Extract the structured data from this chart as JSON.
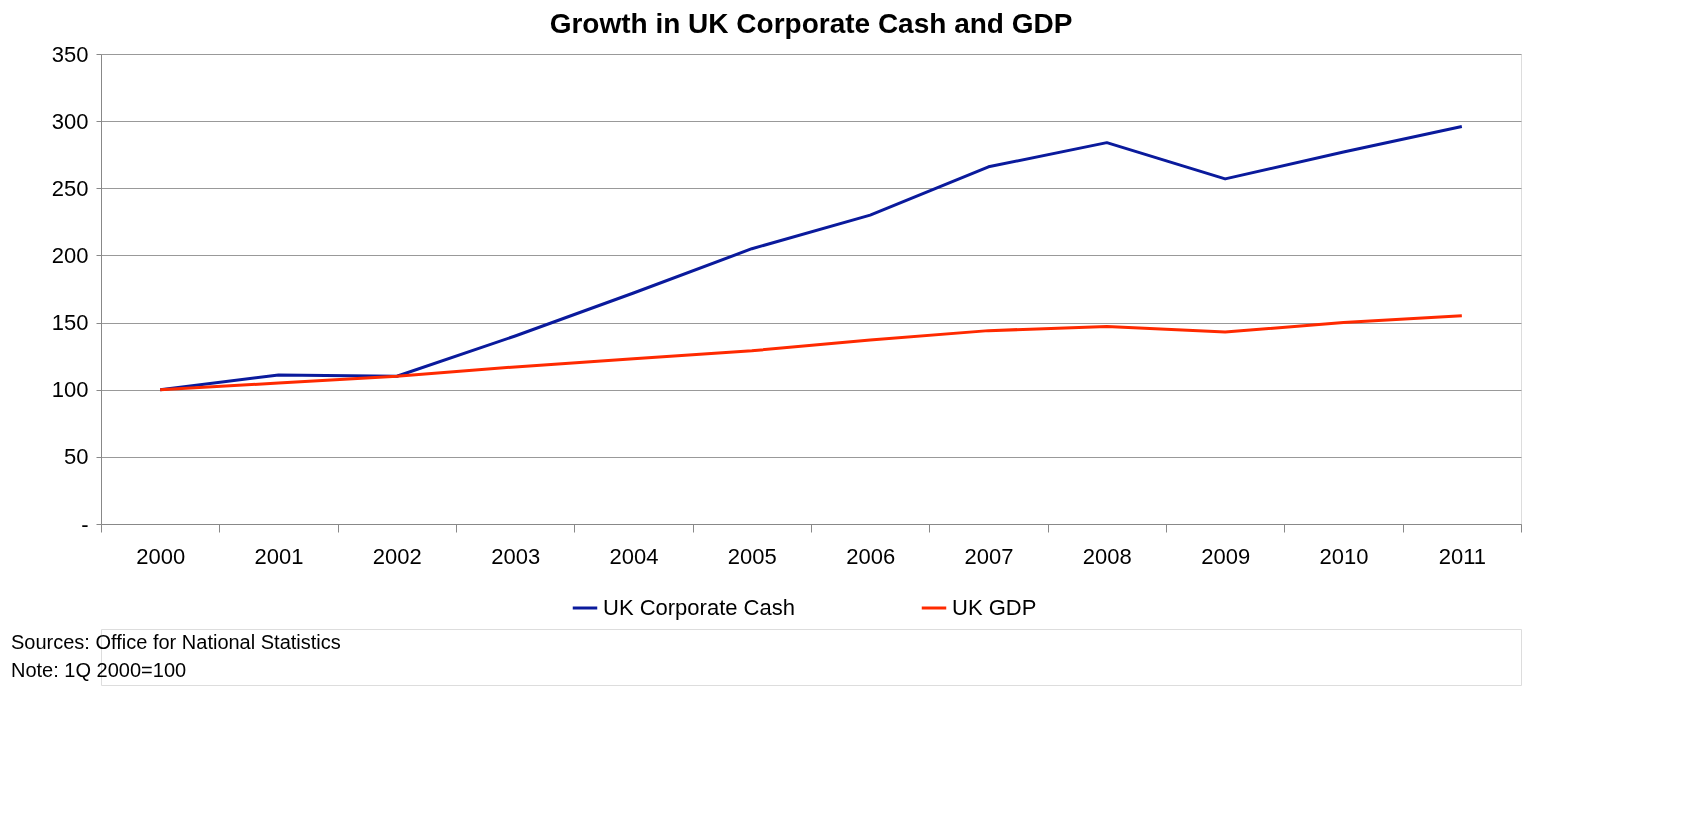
{
  "chart_data": {
    "type": "line",
    "title": "Growth in UK Corporate Cash and GDP",
    "categories": [
      "2000",
      "2001",
      "2002",
      "2003",
      "2004",
      "2005",
      "2006",
      "2007",
      "2008",
      "2009",
      "2010",
      "2011"
    ],
    "series": [
      {
        "name": "UK Corporate Cash",
        "color": "#0a1a9c",
        "values": [
          100,
          111,
          110,
          140,
          172,
          205,
          230,
          266,
          284,
          257,
          277,
          296
        ]
      },
      {
        "name": "UK GDP",
        "color": "#ff2a00",
        "values": [
          100,
          105,
          110,
          117,
          123,
          129,
          137,
          144,
          147,
          143,
          150,
          155
        ]
      }
    ],
    "ylim": [
      0,
      350
    ],
    "yticks": [
      {
        "value": 0,
        "label": "-"
      },
      50,
      100,
      150,
      200,
      250,
      300,
      350
    ],
    "grid": "y",
    "legend": "bottom",
    "marker": "none",
    "line_style": "solid",
    "annotations": [
      "Sources: Office for National Statistics",
      "Note: 1Q 2000=100"
    ]
  }
}
